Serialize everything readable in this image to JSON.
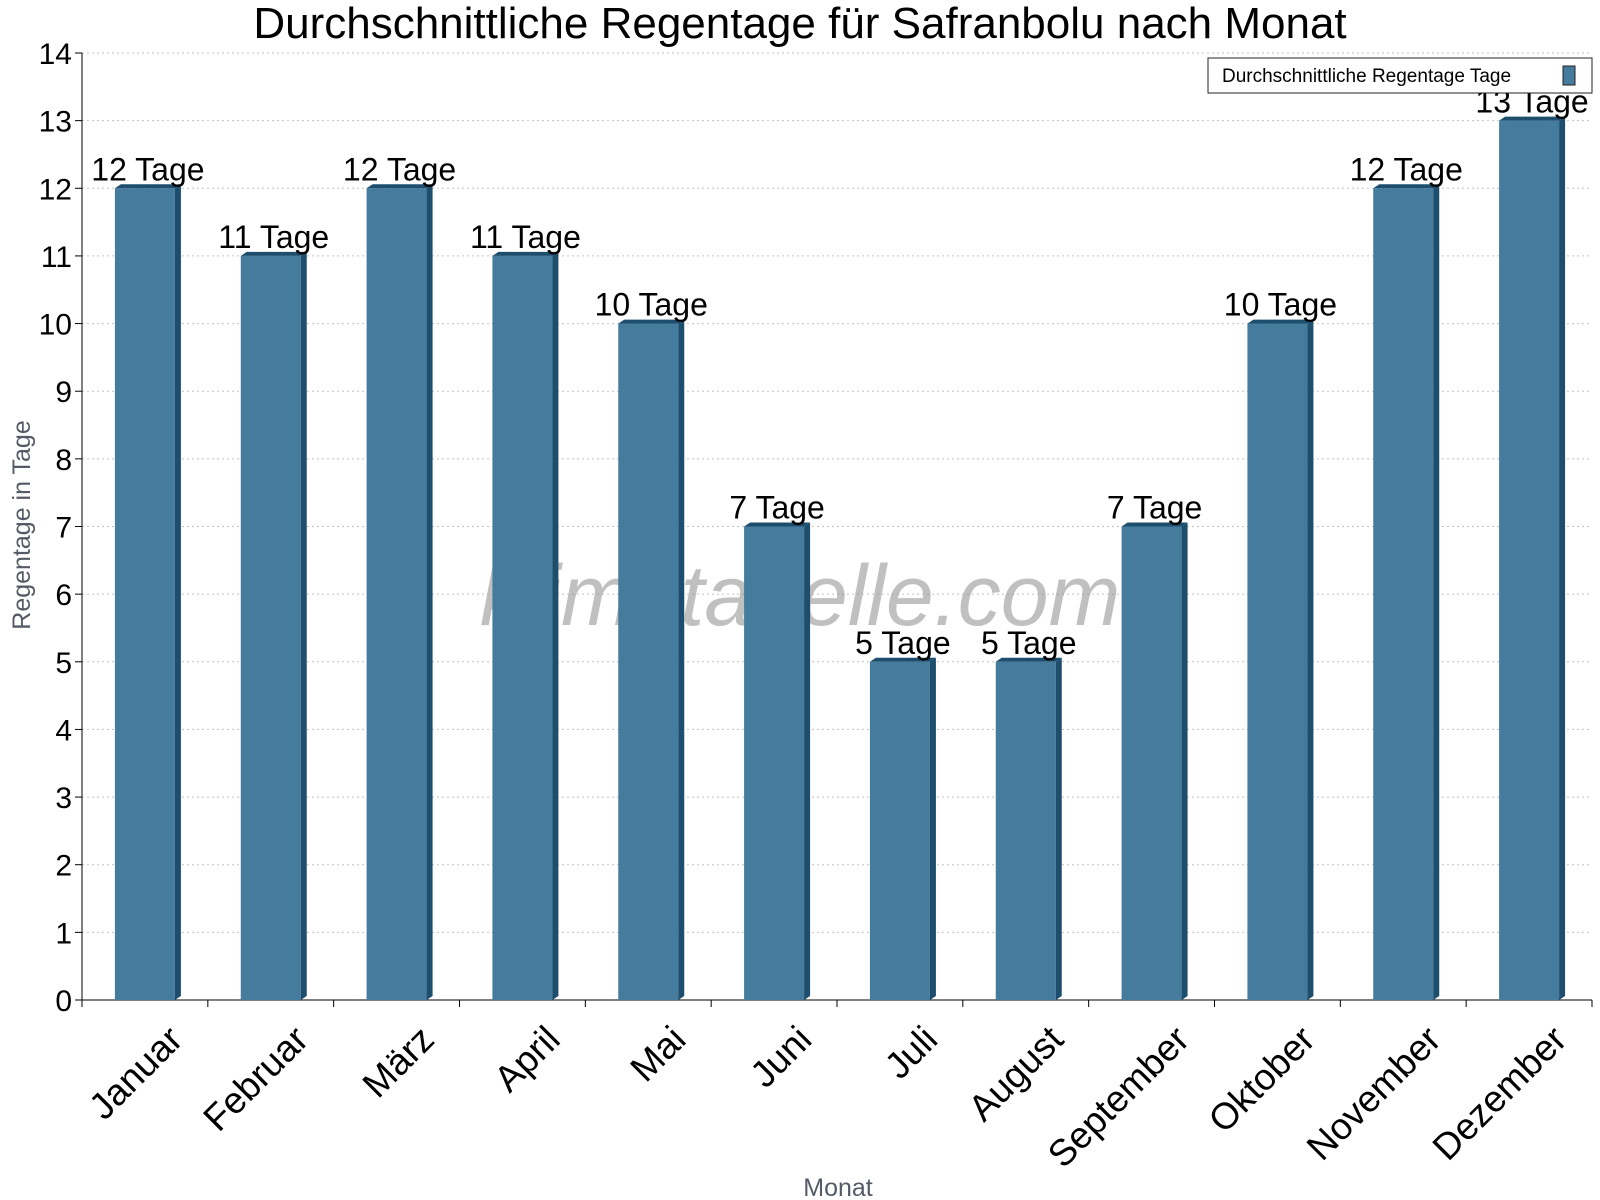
{
  "chart_data": {
    "type": "bar",
    "title": "Durchschnittliche Regentage für Safranbolu nach Monat",
    "xlabel": "Monat",
    "ylabel": "Regentage in Tage",
    "categories": [
      "Januar",
      "Februar",
      "März",
      "April",
      "Mai",
      "Juni",
      "Juli",
      "August",
      "September",
      "Oktober",
      "November",
      "Dezember"
    ],
    "series": [
      {
        "name": "Durchschnittliche Regentage Tage",
        "values": [
          12,
          11,
          12,
          11,
          10,
          7,
          5,
          5,
          7,
          10,
          12,
          13
        ],
        "data_labels": [
          "12 Tage",
          "11 Tage",
          "12 Tage",
          "11 Tage",
          "10 Tage",
          "7 Tage",
          "5 Tage",
          "5 Tage",
          "7 Tage",
          "10 Tage",
          "12 Tage",
          "13 Tage"
        ],
        "color": "#457b9d",
        "side_color": "#1d4e6e"
      }
    ],
    "ylim": [
      0,
      14
    ],
    "yticks": [
      "0",
      "1",
      "2",
      "3",
      "4",
      "5",
      "6",
      "7",
      "8",
      "9",
      "10",
      "11",
      "12",
      "13",
      "14"
    ],
    "grid": true,
    "legend_position": "top-right"
  },
  "watermark": "klimatabelle.com"
}
